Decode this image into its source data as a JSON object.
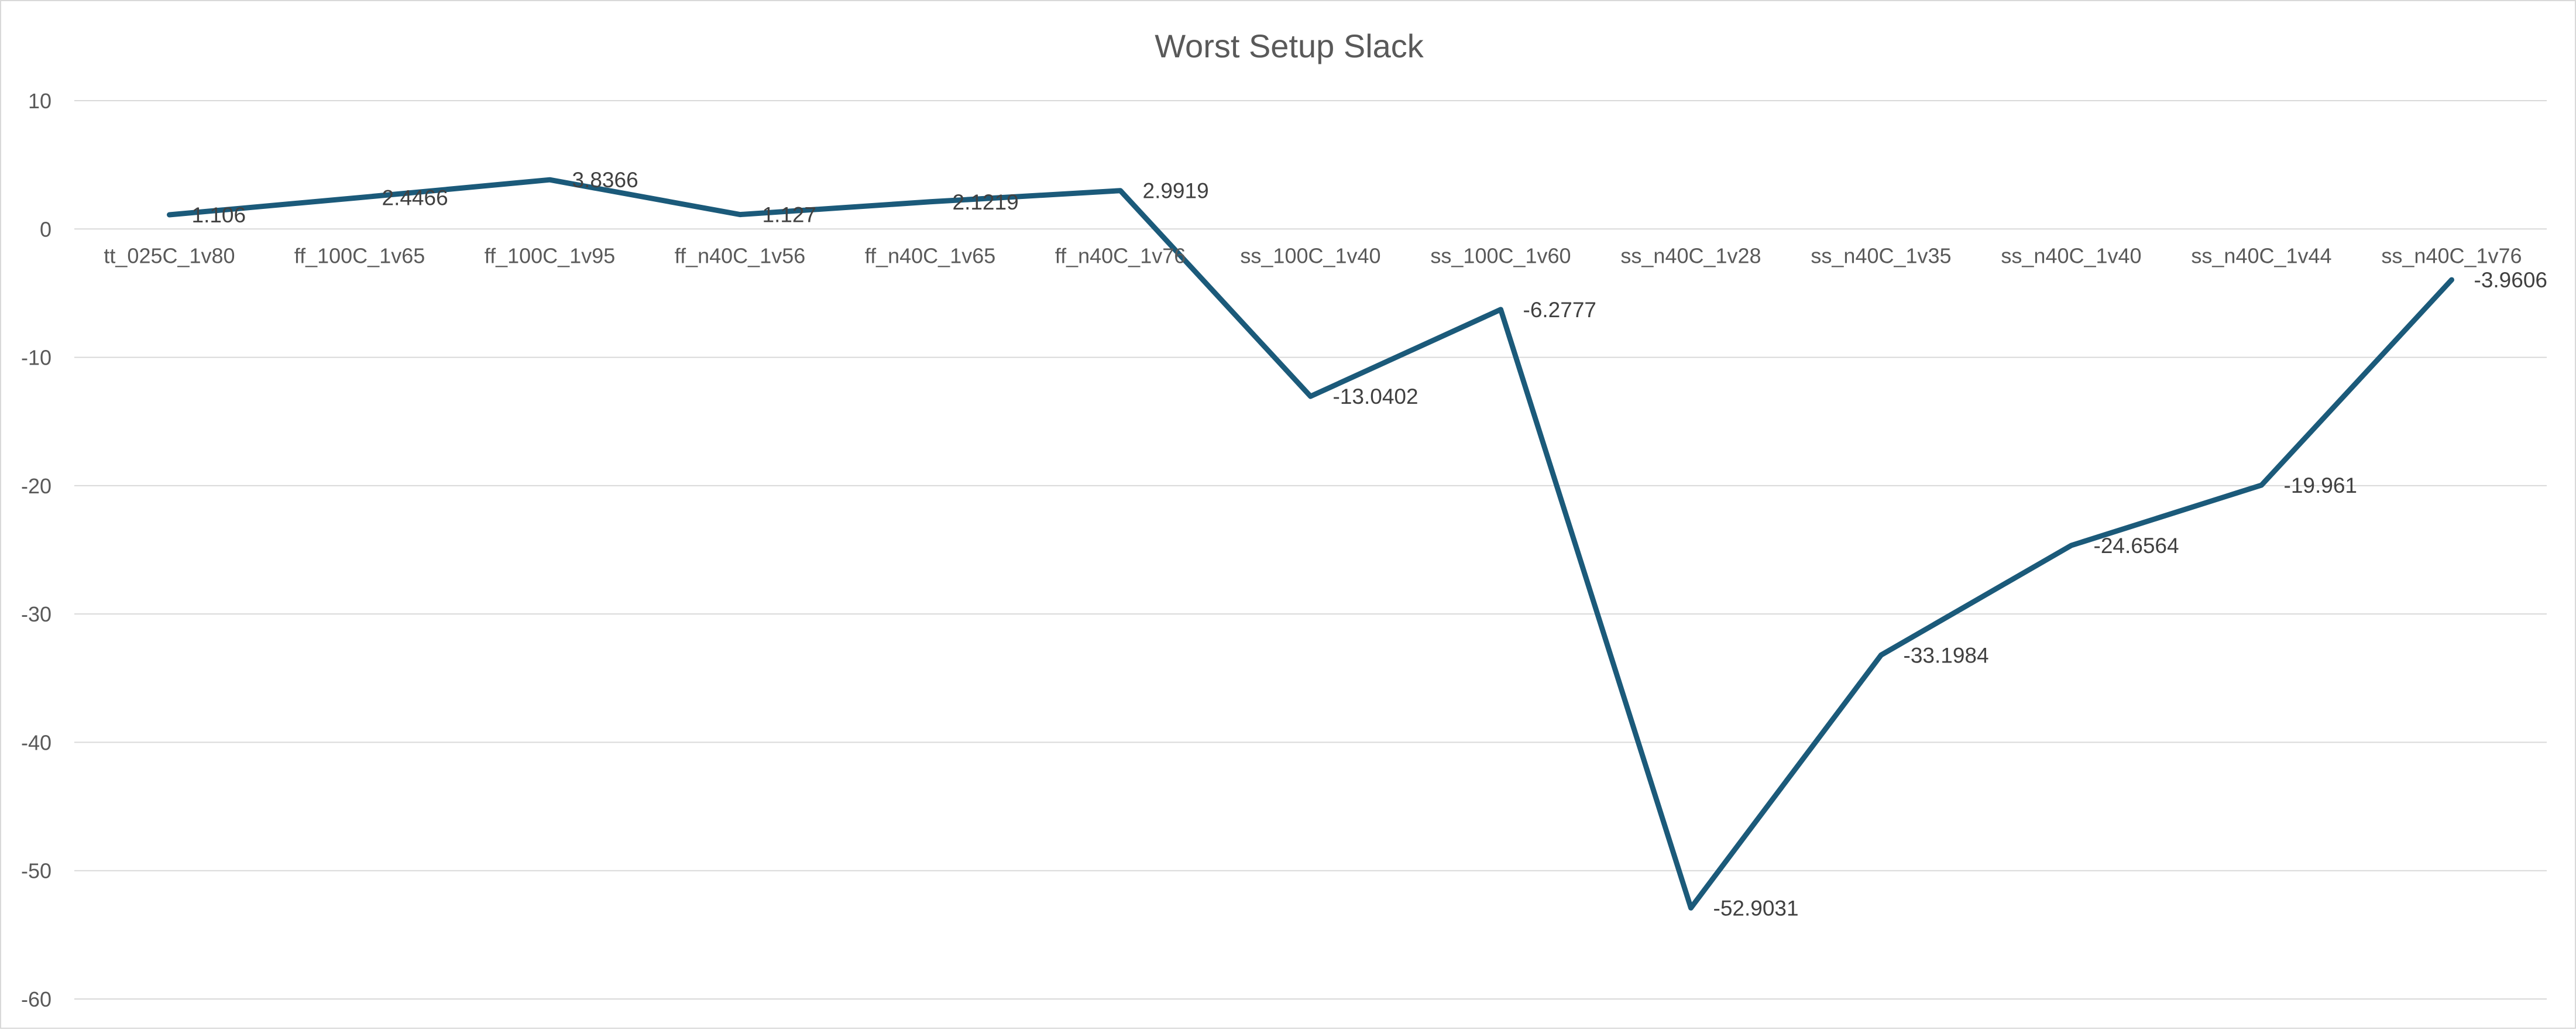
{
  "chart_data": {
    "type": "line",
    "title": "Worst Setup Slack",
    "xlabel": "",
    "ylabel": "",
    "categories": [
      "tt_025C_1v80",
      "ff_100C_1v65",
      "ff_100C_1v95",
      "ff_n40C_1v56",
      "ff_n40C_1v65",
      "ff_n40C_1v76",
      "ss_100C_1v40",
      "ss_100C_1v60",
      "ss_n40C_1v28",
      "ss_n40C_1v35",
      "ss_n40C_1v40",
      "ss_n40C_1v44",
      "ss_n40C_1v76"
    ],
    "series": [
      {
        "values": [
          1.106,
          2.4466,
          3.8366,
          1.127,
          2.1219,
          2.9919,
          -13.0402,
          -6.2777,
          -52.9031,
          -33.1984,
          -24.6564,
          -19.961,
          -3.9606
        ],
        "labels": [
          "1.106",
          "2.4466",
          "3.8366",
          "1.127",
          "2.1219",
          "2.9919",
          "-13.0402",
          "-6.2777",
          "-52.9031",
          "-33.1984",
          "-24.6564",
          "-19.961",
          "-3.9606"
        ]
      }
    ],
    "ylim": [
      -60,
      10
    ],
    "yticks": [
      10,
      0,
      -10,
      -20,
      -30,
      -40,
      -50,
      -60
    ],
    "grid": true,
    "legend": "none",
    "colors": {
      "line": "#1b5a7a",
      "grid": "#d9d9d9",
      "axis_text": "#595959",
      "label_text": "#404040"
    }
  }
}
